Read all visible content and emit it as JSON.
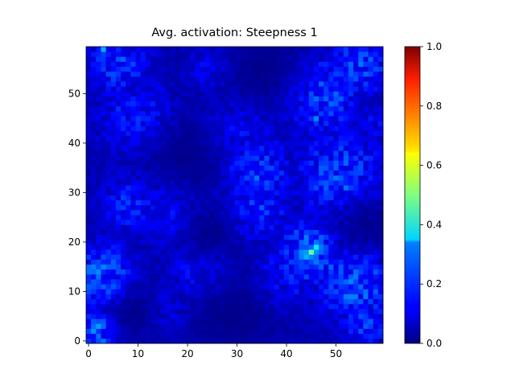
{
  "chart_data": {
    "type": "heatmap",
    "title": "Avg. activation: Steepness 1",
    "xlabel": "",
    "ylabel": "",
    "grid_size": [
      60,
      60
    ],
    "xlim": [
      -0.5,
      59.5
    ],
    "ylim": [
      -0.5,
      59.5
    ],
    "x_ticks": [
      0,
      10,
      20,
      30,
      40,
      50
    ],
    "y_ticks": [
      0,
      10,
      20,
      30,
      40,
      50
    ],
    "colormap": "jet",
    "color_range": [
      0.0,
      1.0
    ],
    "colorbar_ticks": [
      "0.0",
      "0.2",
      "0.4",
      "0.6",
      "0.8",
      "1.0"
    ],
    "hotspots": [
      {
        "x": 45,
        "y": 18,
        "value": 0.48
      },
      {
        "x": 46,
        "y": 19,
        "value": 0.36
      },
      {
        "x": 44,
        "y": 17,
        "value": 0.3
      },
      {
        "x": 2,
        "y": 3,
        "value": 0.28
      },
      {
        "x": 47,
        "y": 15,
        "value": 0.22
      },
      {
        "x": 3,
        "y": 59,
        "value": 0.3
      },
      {
        "x": 46,
        "y": 45,
        "value": 0.26
      },
      {
        "x": 34,
        "y": 33,
        "value": 0.24
      },
      {
        "x": 52,
        "y": 31,
        "value": 0.24
      },
      {
        "x": 49,
        "y": 15,
        "value": 0.22
      },
      {
        "x": 57,
        "y": 57,
        "value": 0.22
      }
    ],
    "regions": [
      {
        "cx": 3,
        "cy": 13,
        "r": 5,
        "value": 0.17
      },
      {
        "cx": 2,
        "cy": 2,
        "r": 3,
        "value": 0.19
      },
      {
        "cx": 9,
        "cy": 28,
        "r": 5,
        "value": 0.12
      },
      {
        "cx": 10,
        "cy": 45,
        "r": 6,
        "value": 0.12
      },
      {
        "cx": 6,
        "cy": 56,
        "r": 5,
        "value": 0.13
      },
      {
        "cx": 16,
        "cy": 27,
        "r": 6,
        "value": 0.12
      },
      {
        "cx": 33,
        "cy": 34,
        "r": 6,
        "value": 0.15
      },
      {
        "cx": 34,
        "cy": 27,
        "r": 5,
        "value": 0.13
      },
      {
        "cx": 30,
        "cy": 42,
        "r": 6,
        "value": 0.11
      },
      {
        "cx": 47,
        "cy": 50,
        "r": 6,
        "value": 0.16
      },
      {
        "cx": 51,
        "cy": 33,
        "r": 7,
        "value": 0.15
      },
      {
        "cx": 45,
        "cy": 18,
        "r": 5,
        "value": 0.18
      },
      {
        "cx": 54,
        "cy": 12,
        "r": 6,
        "value": 0.17
      },
      {
        "cx": 56,
        "cy": 4,
        "r": 4,
        "value": 0.13
      },
      {
        "cx": 40,
        "cy": 13,
        "r": 5,
        "value": 0.11
      },
      {
        "cx": 22,
        "cy": 14,
        "r": 5,
        "value": 0.1
      },
      {
        "cx": 15,
        "cy": 6,
        "r": 4,
        "value": 0.09
      },
      {
        "cx": 55,
        "cy": 56,
        "r": 5,
        "value": 0.14
      },
      {
        "cx": 24,
        "cy": 55,
        "r": 4,
        "value": 0.08
      },
      {
        "cx": 58,
        "cy": 44,
        "r": 3,
        "value": 0.08
      }
    ],
    "cold_regions": [
      {
        "cx": 20,
        "cy": 37,
        "r": 7
      },
      {
        "cx": 36,
        "cy": 55,
        "r": 6
      },
      {
        "cx": 29,
        "cy": 5,
        "r": 6
      },
      {
        "cx": 10,
        "cy": 6,
        "r": 4
      },
      {
        "cx": 56,
        "cy": 24,
        "r": 5
      },
      {
        "cx": 24,
        "cy": 22,
        "r": 4
      }
    ],
    "baseline_value": 0.05
  }
}
